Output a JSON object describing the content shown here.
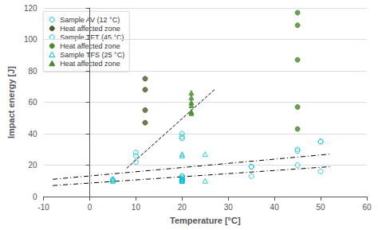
{
  "chart_data": {
    "type": "scatter",
    "xlabel": "Temperature [°C]",
    "ylabel": "Impact energy [J]",
    "xlim": [
      -10,
      60
    ],
    "ylim": [
      0,
      120
    ],
    "xticks": [
      -10,
      0,
      10,
      20,
      30,
      40,
      50,
      60
    ],
    "yticks": [
      0,
      20,
      40,
      60,
      80,
      100,
      120
    ],
    "grid": true,
    "legend": "upper left",
    "series": [
      {
        "name": "Sample AV (12 °C)",
        "type": "scatter",
        "marker": "open_circle",
        "color": "#00bcd4",
        "x": [
          5,
          5,
          10,
          20,
          20,
          20,
          20,
          20,
          35,
          35,
          45,
          45,
          50,
          50
        ],
        "values": [
          11,
          10,
          22,
          40,
          38,
          37,
          13,
          11,
          19,
          13,
          30,
          29,
          35,
          16
        ]
      },
      {
        "name": "Heat affected zone",
        "type": "scatter",
        "marker": "circle",
        "color": "#4a5a28",
        "x": [
          12,
          12,
          12,
          12
        ],
        "values": [
          75,
          68,
          55,
          47
        ]
      },
      {
        "name": "Sample TFT (45 °C)",
        "type": "scatter",
        "marker": "open_circle",
        "color": "#00bcd4",
        "x": [
          10,
          10,
          20,
          20,
          20,
          20,
          20,
          20,
          35,
          45,
          50
        ],
        "values": [
          28,
          26,
          13,
          12,
          11,
          10,
          10,
          11,
          19,
          20,
          35
        ]
      },
      {
        "name": "Heat affected zone",
        "type": "scatter",
        "marker": "circle",
        "color": "#4a8a2a",
        "x": [
          45,
          45,
          45,
          45,
          45
        ],
        "values": [
          117,
          109,
          87,
          57,
          43
        ]
      },
      {
        "name": "Sample TFS (25 °C)",
        "type": "scatter",
        "marker": "open_triangle",
        "color": "#00bcd4",
        "x": [
          5,
          5,
          20,
          20,
          20,
          20,
          20,
          25,
          25
        ],
        "values": [
          10,
          11,
          27,
          26,
          11,
          10,
          10,
          27,
          10
        ]
      },
      {
        "name": "Heat affected zone",
        "type": "scatter",
        "marker": "triangle",
        "color": "#4a8a2a",
        "x": [
          22,
          22,
          22,
          22,
          22,
          22
        ],
        "values": [
          66,
          63,
          60,
          58,
          53,
          54
        ]
      },
      {
        "type": "line",
        "line_style": "dashdot",
        "color": "#000000",
        "x": [
          -8,
          52
        ],
        "values": [
          7.0,
          19.0
        ]
      },
      {
        "type": "line",
        "line_style": "dashdot",
        "color": "#000000",
        "x": [
          -8,
          52
        ],
        "values": [
          11.0,
          27.0
        ]
      },
      {
        "type": "line",
        "line_style": "dashed",
        "color": "#000000",
        "x": [
          8,
          27
        ],
        "values": [
          18.0,
          68.0
        ]
      }
    ]
  }
}
